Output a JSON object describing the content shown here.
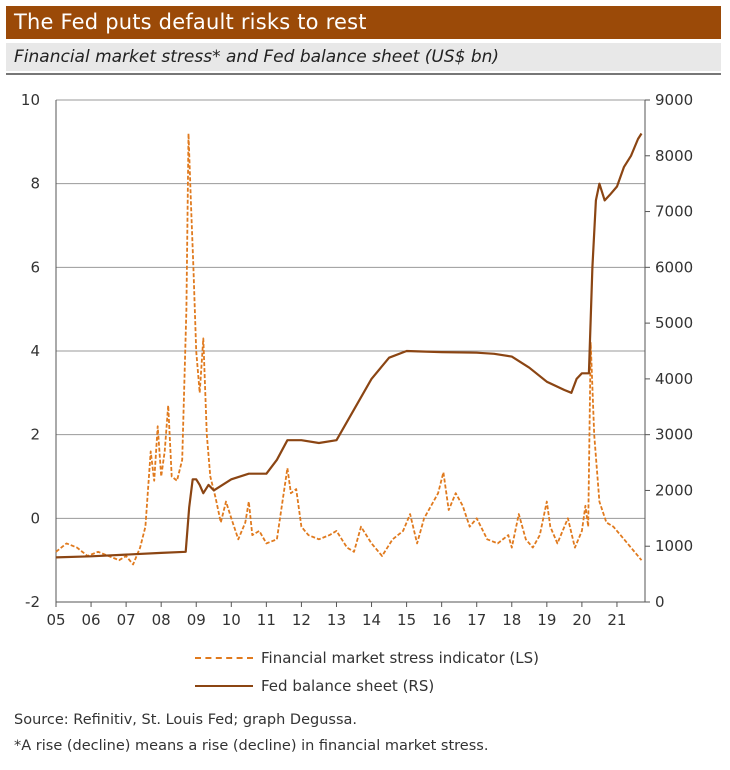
{
  "title": "The Fed puts default risks to rest",
  "subtitle": "Financial market stress* and Fed balance sheet (US$ bn)",
  "legend": {
    "stress_label": "Financial market stress indicator (LS)",
    "balance_label": "Fed balance sheet (RS)"
  },
  "footer": {
    "source": "Source: Refinitiv, St. Louis Fed; graph Degussa.",
    "note": "*A rise (decline) means a rise (decline) in financial market stress."
  },
  "colors": {
    "header_bg": "#9b4a08",
    "stress": "#e07a1e",
    "balance": "#8b4513",
    "grid": "#9a9a9a"
  },
  "chart_data": {
    "type": "line",
    "x_ticks": [
      "05",
      "06",
      "07",
      "08",
      "09",
      "10",
      "11",
      "12",
      "13",
      "14",
      "15",
      "16",
      "17",
      "18",
      "19",
      "20",
      "21"
    ],
    "xlim": [
      2005,
      2021.8
    ],
    "ylim_left": [
      -2,
      10
    ],
    "ylim_right": [
      0,
      9000
    ],
    "y_ticks_left": [
      "-2",
      "0",
      "2",
      "4",
      "6",
      "8",
      "10"
    ],
    "y_ticks_right": [
      "0",
      "1000",
      "2000",
      "3000",
      "4000",
      "5000",
      "6000",
      "7000",
      "8000",
      "9000"
    ],
    "grid": "horizontal",
    "legend_position": "bottom",
    "series": [
      {
        "name": "Financial market stress indicator (LS)",
        "axis": "left",
        "style": "dashed",
        "x": [
          2005.0,
          2005.3,
          2005.6,
          2005.9,
          2006.2,
          2006.5,
          2006.8,
          2007.0,
          2007.2,
          2007.4,
          2007.55,
          2007.7,
          2007.8,
          2007.9,
          2008.0,
          2008.1,
          2008.2,
          2008.3,
          2008.45,
          2008.6,
          2008.72,
          2008.78,
          2008.85,
          2008.92,
          2009.0,
          2009.1,
          2009.2,
          2009.3,
          2009.4,
          2009.55,
          2009.7,
          2009.85,
          2010.0,
          2010.2,
          2010.4,
          2010.5,
          2010.6,
          2010.8,
          2011.0,
          2011.3,
          2011.6,
          2011.7,
          2011.85,
          2012.0,
          2012.2,
          2012.5,
          2012.8,
          2013.0,
          2013.3,
          2013.5,
          2013.7,
          2014.0,
          2014.3,
          2014.6,
          2014.9,
          2015.1,
          2015.3,
          2015.5,
          2015.7,
          2015.9,
          2016.05,
          2016.2,
          2016.4,
          2016.6,
          2016.8,
          2017.0,
          2017.3,
          2017.6,
          2017.9,
          2018.0,
          2018.2,
          2018.4,
          2018.6,
          2018.8,
          2019.0,
          2019.1,
          2019.3,
          2019.6,
          2019.8,
          2020.0,
          2020.1,
          2020.18,
          2020.25,
          2020.35,
          2020.5,
          2020.7,
          2020.9,
          2021.1,
          2021.3,
          2021.5,
          2021.7
        ],
        "y": [
          -0.8,
          -0.6,
          -0.7,
          -0.9,
          -0.8,
          -0.9,
          -1.0,
          -0.9,
          -1.1,
          -0.7,
          -0.2,
          1.6,
          0.9,
          2.2,
          1.0,
          1.6,
          2.7,
          1.0,
          0.9,
          1.4,
          5.0,
          9.2,
          7.5,
          6.0,
          4.0,
          3.0,
          4.3,
          2.0,
          1.0,
          0.5,
          -0.1,
          0.4,
          0.0,
          -0.5,
          -0.1,
          0.4,
          -0.4,
          -0.3,
          -0.6,
          -0.5,
          1.2,
          0.6,
          0.7,
          -0.2,
          -0.4,
          -0.5,
          -0.4,
          -0.3,
          -0.7,
          -0.8,
          -0.2,
          -0.6,
          -0.9,
          -0.5,
          -0.3,
          0.1,
          -0.6,
          0.0,
          0.3,
          0.6,
          1.1,
          0.2,
          0.6,
          0.3,
          -0.2,
          0.0,
          -0.5,
          -0.6,
          -0.4,
          -0.7,
          0.1,
          -0.5,
          -0.7,
          -0.4,
          0.4,
          -0.2,
          -0.6,
          0.0,
          -0.7,
          -0.3,
          0.3,
          -0.2,
          4.2,
          2.0,
          0.4,
          -0.1,
          -0.2,
          -0.4,
          -0.6,
          -0.8,
          -1.0
        ]
      },
      {
        "name": "Fed balance sheet (RS)",
        "axis": "right",
        "style": "solid",
        "x": [
          2005.0,
          2006.0,
          2007.0,
          2008.0,
          2008.7,
          2008.8,
          2008.9,
          2009.0,
          2009.1,
          2009.2,
          2009.35,
          2009.5,
          2010.0,
          2010.5,
          2011.0,
          2011.3,
          2011.6,
          2012.0,
          2012.5,
          2013.0,
          2013.5,
          2014.0,
          2014.5,
          2015.0,
          2016.0,
          2017.0,
          2017.5,
          2018.0,
          2018.5,
          2019.0,
          2019.5,
          2019.7,
          2019.85,
          2020.0,
          2020.2,
          2020.3,
          2020.4,
          2020.5,
          2020.65,
          2020.8,
          2021.0,
          2021.2,
          2021.4,
          2021.6,
          2021.7
        ],
        "y": [
          800,
          820,
          850,
          880,
          900,
          1700,
          2200,
          2200,
          2100,
          1950,
          2100,
          2000,
          2200,
          2300,
          2300,
          2550,
          2900,
          2900,
          2850,
          2900,
          3450,
          4000,
          4380,
          4500,
          4480,
          4470,
          4450,
          4400,
          4200,
          3950,
          3800,
          3750,
          4000,
          4100,
          4100,
          6000,
          7200,
          7500,
          7200,
          7300,
          7450,
          7800,
          8000,
          8300,
          8400
        ]
      }
    ]
  }
}
